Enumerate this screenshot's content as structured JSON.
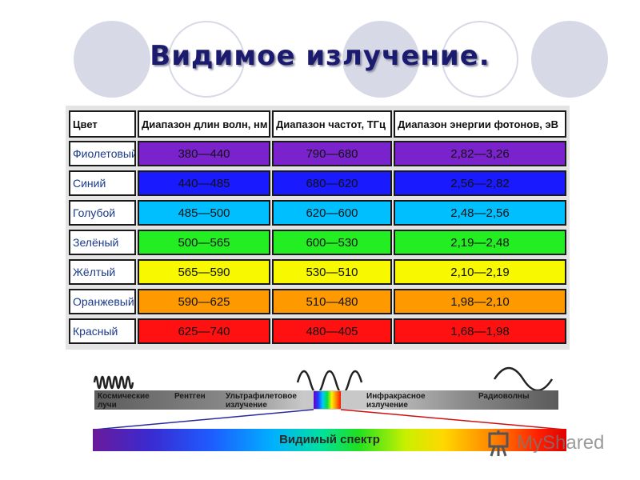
{
  "title": "Видимое излучение.",
  "table": {
    "headers": [
      "Цвет",
      "Диапазон длин волн, нм",
      "Диапазон частот, ТГц",
      "Диапазон энергии фотонов, эВ"
    ],
    "rows": [
      {
        "name": "Фиолетовый",
        "wave": "380—440",
        "freq": "790—680",
        "energy": "2,82—3,26",
        "color": "#7a22cc"
      },
      {
        "name": "Синий",
        "wave": "440—485",
        "freq": "680—620",
        "energy": "2,56—2,82",
        "color": "#1a1aff"
      },
      {
        "name": "Голубой",
        "wave": "485—500",
        "freq": "620—600",
        "energy": "2,48—2,56",
        "color": "#00bfff"
      },
      {
        "name": "Зелёный",
        "wave": "500—565",
        "freq": "600—530",
        "energy": "2,19—2,48",
        "color": "#22ee22"
      },
      {
        "name": "Жёлтый",
        "wave": "565—590",
        "freq": "530—510",
        "energy": "2,10—2,19",
        "color": "#f8f800"
      },
      {
        "name": "Оранжевый",
        "wave": "590—625",
        "freq": "510—480",
        "energy": "1,98—2,10",
        "color": "#ff9900"
      },
      {
        "name": "Красный",
        "wave": "625—740",
        "freq": "480—405",
        "energy": "1,68—1,98",
        "color": "#ff1111"
      }
    ]
  },
  "spectrum": {
    "bands": {
      "cosmic": "Космические лучи",
      "xray": "Рентген",
      "uv": "Ультрафилетовое излучение",
      "ir": "Инфракрасное излучение",
      "radio": "Радиоволны"
    },
    "visible_label": "Видимый спектр"
  },
  "watermark": "MyShared"
}
